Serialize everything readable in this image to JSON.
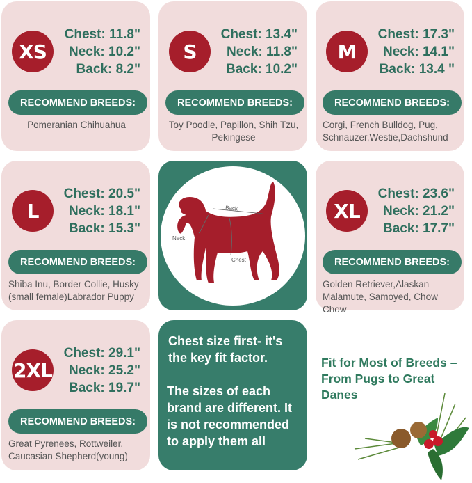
{
  "header_label": "RECOMMEND BREEDS:",
  "sizes": [
    {
      "size": "XS",
      "chest": "Chest: 11.8\"",
      "neck": "Neck: 10.2\"",
      "back": "Back: 8.2\"",
      "breeds": "Pomeranian Chihuahua"
    },
    {
      "size": "S",
      "chest": "Chest: 13.4\"",
      "neck": "Neck: 11.8\"",
      "back": "Back: 10.2\"",
      "breeds": "Toy Poodle, Papillon, Shih Tzu, Pekingese"
    },
    {
      "size": "M",
      "chest": "Chest: 17.3\"",
      "neck": "Neck: 14.1\"",
      "back": "Back: 13.4 \"",
      "breeds": "Corgi, French Bulldog, Pug, Schnauzer,Westie,Dachshund"
    },
    {
      "size": "L",
      "chest": "Chest: 20.5\"",
      "neck": "Neck: 18.1\"",
      "back": "Back: 15.3\"",
      "breeds": "Shiba Inu, Border Collie, Husky (small female)Labrador Puppy"
    },
    {
      "size": "XL",
      "chest": "Chest: 23.6\"",
      "neck": "Neck: 21.2\"",
      "back": "Back: 17.7\"",
      "breeds": "Golden Retriever,Alaskan Malamute, Samoyed, Chow Chow"
    },
    {
      "size": "2XL",
      "chest": "Chest: 29.1\"",
      "neck": "Neck: 25.2\"",
      "back": "Back: 19.7\"",
      "breeds": "Great Pyrenees, Rottweiler, Caucasian Shepherd(young)"
    }
  ],
  "diagram": {
    "back": "Back",
    "neck": "Neck",
    "chest": "Chest"
  },
  "tips": {
    "line1": "Chest size first- it's the key fit factor.",
    "line2": "The sizes of each brand are different. It is not recommended to apply them all"
  },
  "fit_text": "Fit for Most of Breeds – From Pugs to Great Danes",
  "colors": {
    "card": "#f1dcdc",
    "accent_green": "#377d6b",
    "badge_red": "#a61e2b",
    "text_green": "#2f6f5e"
  }
}
